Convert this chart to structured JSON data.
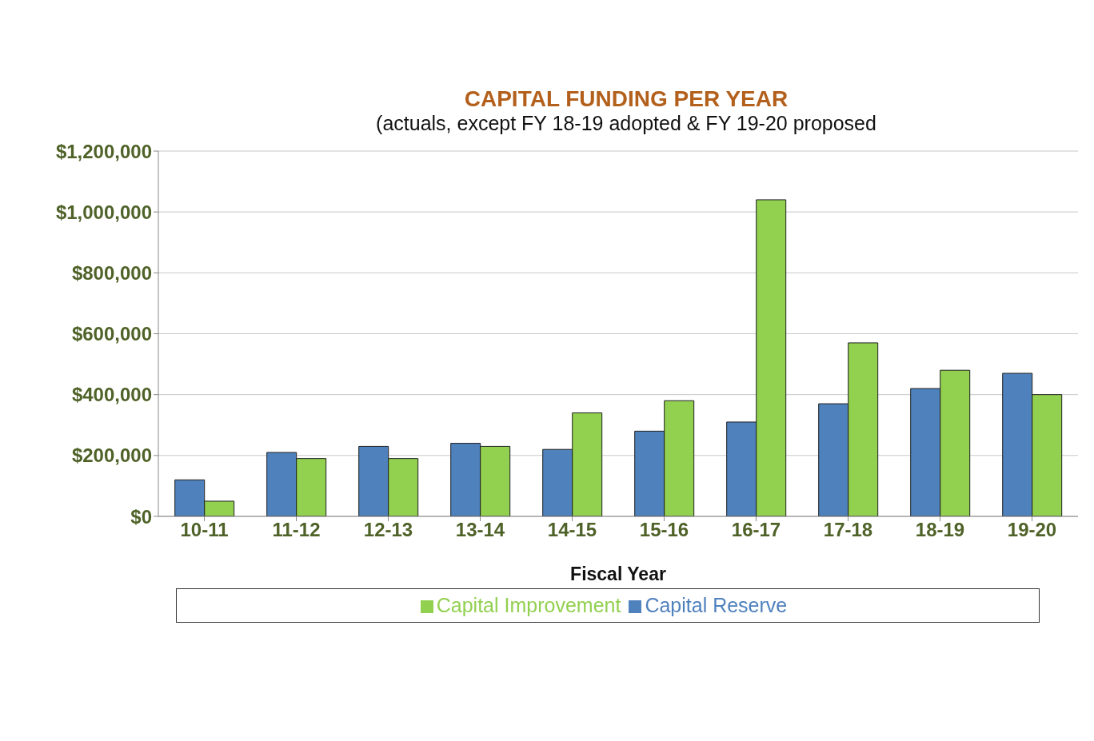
{
  "chart_data": {
    "type": "bar",
    "title": "CAPITAL FUNDING PER YEAR",
    "subtitle": "(actuals,  except FY 18-19 adopted & FY 19-20 proposed",
    "xlabel": "Fiscal Year",
    "categories": [
      "10-11",
      "11-12",
      "12-13",
      "13-14",
      "14-15",
      "15-16",
      "16-17",
      "17-18",
      "18-19",
      "19-20"
    ],
    "series": [
      {
        "name": "Capital Reserve",
        "color": "#4f81bd",
        "values": [
          120000,
          210000,
          230000,
          240000,
          220000,
          280000,
          310000,
          370000,
          420000,
          470000
        ]
      },
      {
        "name": "Capital Improvement",
        "color": "#92d050",
        "values": [
          50000,
          190000,
          190000,
          230000,
          340000,
          380000,
          1040000,
          570000,
          480000,
          400000
        ]
      }
    ],
    "ylim": [
      0,
      1200000
    ],
    "yticks": [
      {
        "value": 0,
        "label": "$0"
      },
      {
        "value": 200000,
        "label": "$200,000"
      },
      {
        "value": 400000,
        "label": "$400,000"
      },
      {
        "value": 600000,
        "label": "$600,000"
      },
      {
        "value": 800000,
        "label": "$800,000"
      },
      {
        "value": 1000000,
        "label": "$1,000,000"
      },
      {
        "value": 1200000,
        "label": "$1,200,000"
      }
    ],
    "grid": "y",
    "legend": "bottom"
  }
}
